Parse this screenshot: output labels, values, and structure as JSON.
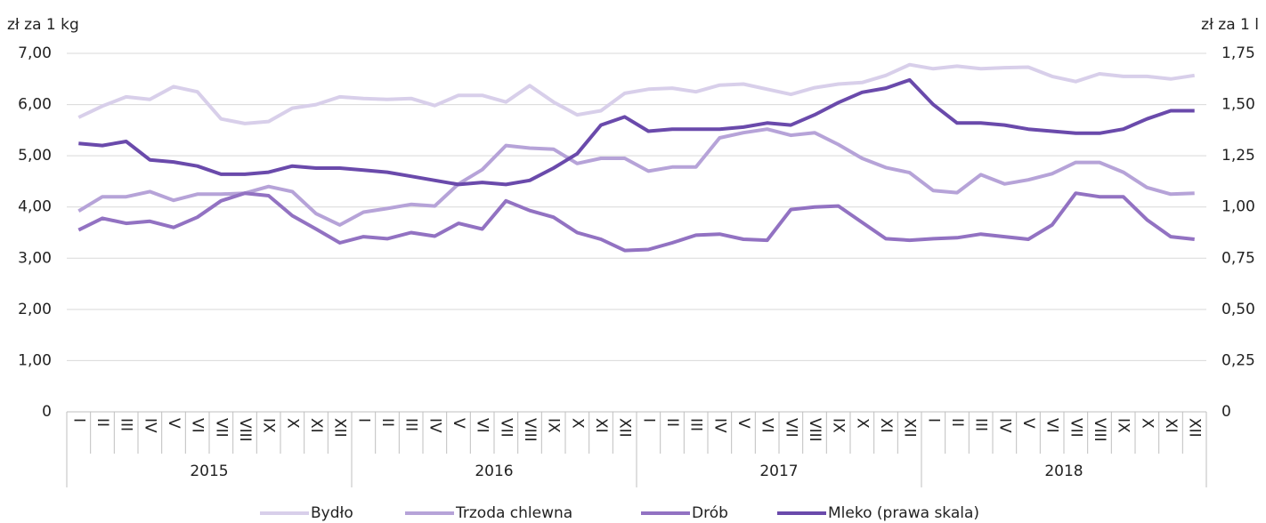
{
  "chart_data": {
    "type": "line",
    "y_label": "zł za 1 kg",
    "y2_label": "zł za 1 l",
    "categories": [
      "I",
      "II",
      "III",
      "IV",
      "V",
      "VI",
      "VII",
      "VIII",
      "IX",
      "X",
      "XI",
      "XII",
      "I",
      "II",
      "III",
      "IV",
      "V",
      "VI",
      "VII",
      "VIII",
      "IX",
      "X",
      "XI",
      "XII",
      "I",
      "II",
      "III",
      "IV",
      "V",
      "VI",
      "VII",
      "VIII",
      "IX",
      "X",
      "XI",
      "XII",
      "I",
      "II",
      "III",
      "IV",
      "V",
      "VI",
      "VII",
      "VIII",
      "IX",
      "X",
      "XI",
      "XII"
    ],
    "years": [
      "2015",
      "2016",
      "2017",
      "2018"
    ],
    "ylim": [
      0,
      7
    ],
    "yticks": [
      0,
      {
        "value": 1,
        "label": "1,00"
      },
      {
        "value": 2,
        "label": "2,00"
      },
      {
        "value": 3,
        "label": "3,00"
      },
      {
        "value": 4,
        "label": "4,00"
      },
      {
        "value": 5,
        "label": "5,00"
      },
      {
        "value": 6,
        "label": "6,00"
      },
      {
        "value": 7,
        "label": "7,00"
      }
    ],
    "y2lim": [
      0,
      1.75
    ],
    "y2ticks": [
      0,
      {
        "value": 0.25,
        "label": "0,25"
      },
      {
        "value": 0.5,
        "label": "0,50"
      },
      {
        "value": 0.75,
        "label": "0,75"
      },
      {
        "value": 1,
        "label": "1,00"
      },
      {
        "value": 1.25,
        "label": "1,25"
      },
      {
        "value": 1.5,
        "label": "1,50"
      },
      {
        "value": 1.75,
        "label": "1,75"
      }
    ],
    "grid": true,
    "series": [
      {
        "name": "Bydło",
        "color": "#d8cfea",
        "values": [
          5.75,
          5.97,
          6.15,
          6.1,
          6.35,
          6.25,
          5.72,
          5.63,
          5.67,
          5.93,
          6.0,
          6.15,
          6.12,
          6.1,
          6.12,
          5.98,
          6.18,
          6.18,
          6.05,
          6.37,
          6.05,
          5.8,
          5.88,
          6.22,
          6.3,
          6.32,
          6.25,
          6.38,
          6.4,
          6.3,
          6.2,
          6.33,
          6.4,
          6.43,
          6.57,
          6.78,
          6.7,
          6.75,
          6.7,
          6.72,
          6.73,
          6.55,
          6.45,
          6.6,
          6.55,
          6.55,
          6.5,
          6.57
        ]
      },
      {
        "name": "Trzoda chlewna",
        "color": "#b6a3d8",
        "values": [
          3.92,
          4.2,
          4.2,
          4.3,
          4.13,
          4.25,
          4.25,
          4.27,
          4.4,
          4.3,
          3.87,
          3.65,
          3.9,
          3.97,
          4.05,
          4.02,
          4.45,
          4.73,
          5.2,
          5.15,
          5.13,
          4.85,
          4.95,
          4.95,
          4.7,
          4.78,
          4.78,
          5.35,
          5.45,
          5.52,
          5.4,
          5.45,
          5.22,
          4.95,
          4.77,
          4.67,
          4.32,
          4.28,
          4.63,
          4.45,
          4.53,
          4.65,
          4.87,
          4.87,
          4.68,
          4.38,
          4.25,
          4.27
        ]
      },
      {
        "name": "Drób",
        "color": "#9272c2",
        "values": [
          3.55,
          3.78,
          3.68,
          3.72,
          3.6,
          3.8,
          4.12,
          4.27,
          4.22,
          3.83,
          3.57,
          3.3,
          3.42,
          3.38,
          3.5,
          3.43,
          3.68,
          3.57,
          4.12,
          3.93,
          3.8,
          3.5,
          3.37,
          3.15,
          3.17,
          3.3,
          3.45,
          3.47,
          3.37,
          3.35,
          3.95,
          4.0,
          4.02,
          3.7,
          3.38,
          3.35,
          3.38,
          3.4,
          3.47,
          3.42,
          3.37,
          3.65,
          4.27,
          4.2,
          4.2,
          3.75,
          3.42,
          3.37
        ]
      },
      {
        "name": "Mleko (prawa skala)",
        "color": "#6a4aab",
        "axis": "y2",
        "values": [
          1.31,
          1.3,
          1.32,
          1.23,
          1.22,
          1.2,
          1.16,
          1.16,
          1.17,
          1.2,
          1.19,
          1.19,
          1.18,
          1.17,
          1.15,
          1.13,
          1.11,
          1.12,
          1.11,
          1.13,
          1.19,
          1.26,
          1.4,
          1.44,
          1.37,
          1.38,
          1.38,
          1.38,
          1.39,
          1.41,
          1.4,
          1.45,
          1.51,
          1.56,
          1.58,
          1.62,
          1.5,
          1.41,
          1.41,
          1.4,
          1.38,
          1.37,
          1.36,
          1.36,
          1.38,
          1.43,
          1.47,
          1.47
        ]
      }
    ]
  }
}
